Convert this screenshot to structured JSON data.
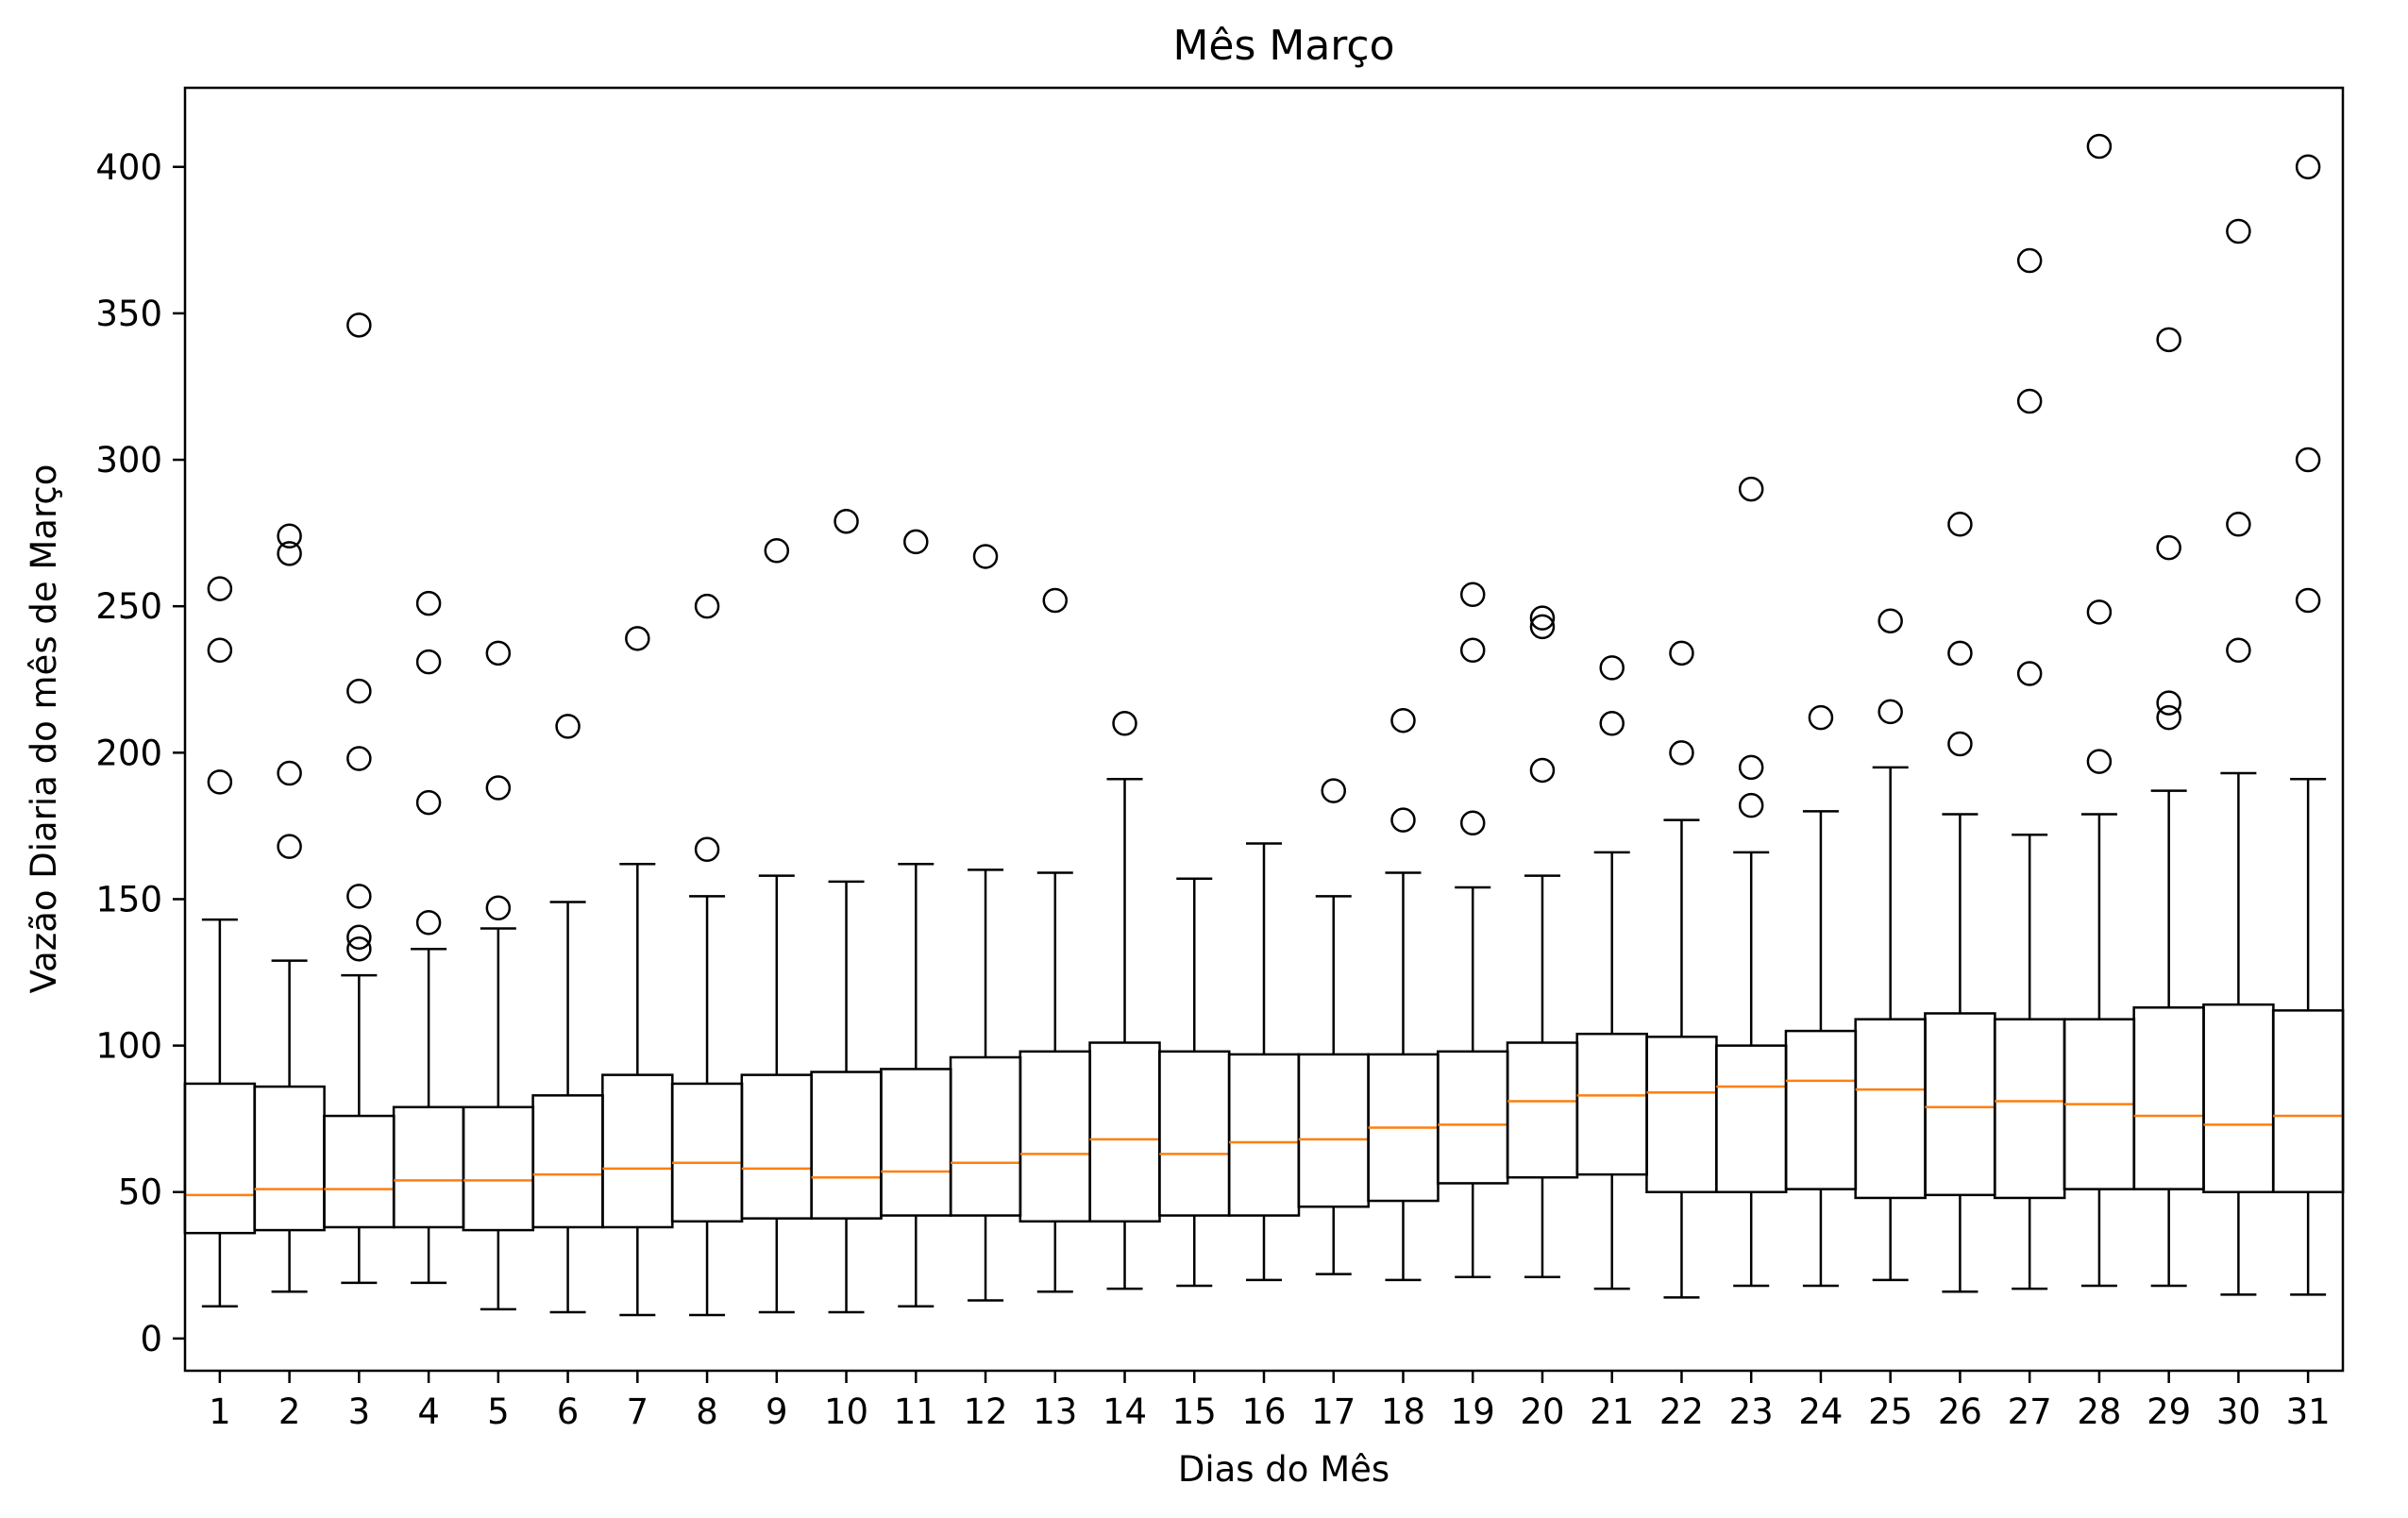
{
  "chart_data": {
    "type": "boxplot",
    "title": "Mês Março",
    "xlabel": "Dias do Mês",
    "ylabel": "Vazão Diaria do mês de Março",
    "ylim": [
      -11,
      427
    ],
    "xlim": [
      0.5,
      31.5
    ],
    "y_ticks": [
      0,
      50,
      100,
      150,
      200,
      250,
      300,
      350,
      400
    ],
    "grid": false,
    "colors": {
      "box": "#000000",
      "median": "#ff7f0e",
      "flier": "#000000"
    },
    "boxes": [
      {
        "label": "1",
        "whislo": 11,
        "q1": 36,
        "med": 49,
        "q3": 87,
        "whishi": 143,
        "fliers": [
          190,
          235,
          256
        ]
      },
      {
        "label": "2",
        "whislo": 16,
        "q1": 37,
        "med": 51,
        "q3": 86,
        "whishi": 129,
        "fliers": [
          168,
          193,
          268,
          274
        ]
      },
      {
        "label": "3",
        "whislo": 19,
        "q1": 38,
        "med": 51,
        "q3": 76,
        "whishi": 124,
        "fliers": [
          133,
          137,
          151,
          198,
          221,
          346
        ]
      },
      {
        "label": "4",
        "whislo": 19,
        "q1": 38,
        "med": 54,
        "q3": 79,
        "whishi": 133,
        "fliers": [
          142,
          183,
          231,
          251
        ]
      },
      {
        "label": "5",
        "whislo": 10,
        "q1": 37,
        "med": 54,
        "q3": 79,
        "whishi": 140,
        "fliers": [
          147,
          188,
          234
        ]
      },
      {
        "label": "6",
        "whislo": 9,
        "q1": 38,
        "med": 56,
        "q3": 83,
        "whishi": 149,
        "fliers": [
          209
        ]
      },
      {
        "label": "7",
        "whislo": 8,
        "q1": 38,
        "med": 58,
        "q3": 90,
        "whishi": 162,
        "fliers": [
          239
        ]
      },
      {
        "label": "8",
        "whislo": 8,
        "q1": 40,
        "med": 60,
        "q3": 87,
        "whishi": 151,
        "fliers": [
          167,
          250
        ]
      },
      {
        "label": "9",
        "whislo": 9,
        "q1": 41,
        "med": 58,
        "q3": 90,
        "whishi": 158,
        "fliers": [
          269
        ]
      },
      {
        "label": "10",
        "whislo": 9,
        "q1": 41,
        "med": 55,
        "q3": 91,
        "whishi": 156,
        "fliers": [
          279
        ]
      },
      {
        "label": "11",
        "whislo": 11,
        "q1": 42,
        "med": 57,
        "q3": 92,
        "whishi": 162,
        "fliers": [
          272
        ]
      },
      {
        "label": "12",
        "whislo": 13,
        "q1": 42,
        "med": 60,
        "q3": 96,
        "whishi": 160,
        "fliers": [
          267
        ]
      },
      {
        "label": "13",
        "whislo": 16,
        "q1": 40,
        "med": 63,
        "q3": 98,
        "whishi": 159,
        "fliers": [
          252
        ]
      },
      {
        "label": "14",
        "whislo": 17,
        "q1": 40,
        "med": 68,
        "q3": 101,
        "whishi": 191,
        "fliers": [
          210
        ]
      },
      {
        "label": "15",
        "whislo": 18,
        "q1": 42,
        "med": 63,
        "q3": 98,
        "whishi": 157,
        "fliers": []
      },
      {
        "label": "16",
        "whislo": 20,
        "q1": 42,
        "med": 67,
        "q3": 97,
        "whishi": 169,
        "fliers": []
      },
      {
        "label": "17",
        "whislo": 22,
        "q1": 45,
        "med": 68,
        "q3": 97,
        "whishi": 151,
        "fliers": [
          187
        ]
      },
      {
        "label": "18",
        "whislo": 20,
        "q1": 47,
        "med": 72,
        "q3": 97,
        "whishi": 159,
        "fliers": [
          177,
          211
        ]
      },
      {
        "label": "19",
        "whislo": 21,
        "q1": 53,
        "med": 73,
        "q3": 98,
        "whishi": 154,
        "fliers": [
          176,
          235,
          254
        ]
      },
      {
        "label": "20",
        "whislo": 21,
        "q1": 55,
        "med": 81,
        "q3": 101,
        "whishi": 158,
        "fliers": [
          194,
          243,
          246
        ]
      },
      {
        "label": "21",
        "whislo": 17,
        "q1": 56,
        "med": 83,
        "q3": 104,
        "whishi": 166,
        "fliers": [
          210,
          229
        ]
      },
      {
        "label": "22",
        "whislo": 14,
        "q1": 50,
        "med": 84,
        "q3": 103,
        "whishi": 177,
        "fliers": [
          200,
          234
        ]
      },
      {
        "label": "23",
        "whislo": 18,
        "q1": 50,
        "med": 86,
        "q3": 100,
        "whishi": 166,
        "fliers": [
          182,
          195,
          290
        ]
      },
      {
        "label": "24",
        "whislo": 18,
        "q1": 51,
        "med": 88,
        "q3": 105,
        "whishi": 180,
        "fliers": [
          212
        ]
      },
      {
        "label": "25",
        "whislo": 20,
        "q1": 48,
        "med": 85,
        "q3": 109,
        "whishi": 195,
        "fliers": [
          214,
          245
        ]
      },
      {
        "label": "26",
        "whislo": 16,
        "q1": 49,
        "med": 79,
        "q3": 111,
        "whishi": 179,
        "fliers": [
          203,
          234,
          278
        ]
      },
      {
        "label": "27",
        "whislo": 17,
        "q1": 48,
        "med": 81,
        "q3": 109,
        "whishi": 172,
        "fliers": [
          227,
          320,
          368
        ]
      },
      {
        "label": "28",
        "whislo": 18,
        "q1": 51,
        "med": 80,
        "q3": 109,
        "whishi": 179,
        "fliers": [
          197,
          248,
          407
        ]
      },
      {
        "label": "29",
        "whislo": 18,
        "q1": 51,
        "med": 76,
        "q3": 113,
        "whishi": 187,
        "fliers": [
          212,
          217,
          270,
          341
        ]
      },
      {
        "label": "30",
        "whislo": 15,
        "q1": 50,
        "med": 73,
        "q3": 114,
        "whishi": 193,
        "fliers": [
          235,
          278,
          378
        ]
      },
      {
        "label": "31",
        "whislo": 15,
        "q1": 50,
        "med": 76,
        "q3": 112,
        "whishi": 191,
        "fliers": [
          252,
          300,
          400
        ]
      }
    ]
  }
}
